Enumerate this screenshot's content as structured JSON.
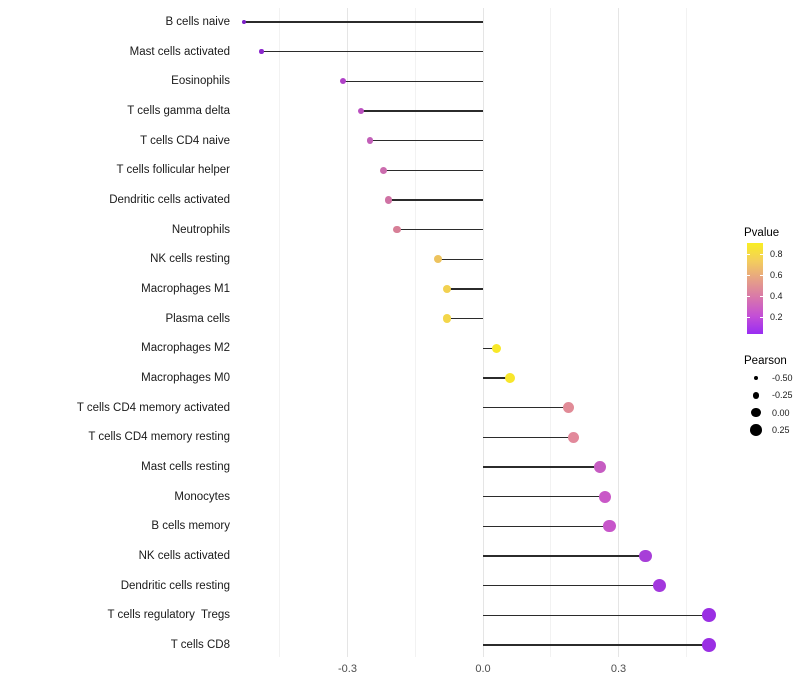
{
  "chart_data": {
    "type": "lollipop",
    "title": "",
    "xlabel": "",
    "ylabel": "",
    "x_domain": [
      -0.55,
      0.52
    ],
    "x_ticks": [
      {
        "label": "-0.3",
        "value": -0.3
      },
      {
        "label": "0.0",
        "value": 0.0
      },
      {
        "label": "0.3",
        "value": 0.3
      }
    ],
    "grid": true,
    "points": [
      {
        "label": "B cells naive",
        "pearson": -0.53,
        "color": "#7c21c6"
      },
      {
        "label": "Mast cells activated",
        "pearson": -0.49,
        "color": "#8c28cd"
      },
      {
        "label": "Eosinophils",
        "pearson": -0.31,
        "color": "#b041c8"
      },
      {
        "label": "T cells gamma delta",
        "pearson": -0.27,
        "color": "#bb50c0"
      },
      {
        "label": "T cells CD4 naive",
        "pearson": -0.25,
        "color": "#c25fb8"
      },
      {
        "label": "T cells follicular helper",
        "pearson": -0.22,
        "color": "#cb6cae"
      },
      {
        "label": "Dendritic cells activated",
        "pearson": -0.21,
        "color": "#cf72a4"
      },
      {
        "label": "Neutrophils",
        "pearson": -0.19,
        "color": "#d77f97"
      },
      {
        "label": "NK cells resting",
        "pearson": -0.1,
        "color": "#edc35e"
      },
      {
        "label": "Macrophages M1",
        "pearson": -0.08,
        "color": "#f2d150"
      },
      {
        "label": "Plasma cells",
        "pearson": -0.08,
        "color": "#f3d64a"
      },
      {
        "label": "Macrophages M2",
        "pearson": 0.03,
        "color": "#f8e828"
      },
      {
        "label": "Macrophages M0",
        "pearson": 0.06,
        "color": "#f8e62b"
      },
      {
        "label": "T cells CD4 memory activated",
        "pearson": 0.19,
        "color": "#e18b97"
      },
      {
        "label": "T cells CD4 memory resting",
        "pearson": 0.2,
        "color": "#e2899b"
      },
      {
        "label": "Mast cells resting",
        "pearson": 0.26,
        "color": "#c65cc2"
      },
      {
        "label": "Monocytes",
        "pearson": 0.27,
        "color": "#c958c7"
      },
      {
        "label": "B cells memory",
        "pearson": 0.28,
        "color": "#c756ca"
      },
      {
        "label": "NK cells activated",
        "pearson": 0.36,
        "color": "#a73ed8"
      },
      {
        "label": "Dendritic cells resting",
        "pearson": 0.39,
        "color": "#a338dd"
      },
      {
        "label": "T cells regulatory  Tregs",
        "pearson": 0.5,
        "color": "#9a2fe3"
      },
      {
        "label": "T cells CD8",
        "pearson": 0.5,
        "color": "#9a2fe3"
      }
    ],
    "legend_pvalue": {
      "title": "Pvalue",
      "tick_labels": [
        "0.8",
        "0.6",
        "0.4",
        "0.2"
      ],
      "gradient_top_to_bottom": [
        "#f9ee24",
        "#f3cd5d",
        "#e6a186",
        "#d877ab",
        "#c44fd6",
        "#992df2"
      ]
    },
    "legend_pearson": {
      "title": "Pearson",
      "items": [
        {
          "label": "-0.50",
          "r": -0.5
        },
        {
          "label": "-0.25",
          "r": -0.25
        },
        {
          "label": "0.00",
          "r": 0.0
        },
        {
          "label": "0.25",
          "r": 0.25
        }
      ]
    }
  }
}
